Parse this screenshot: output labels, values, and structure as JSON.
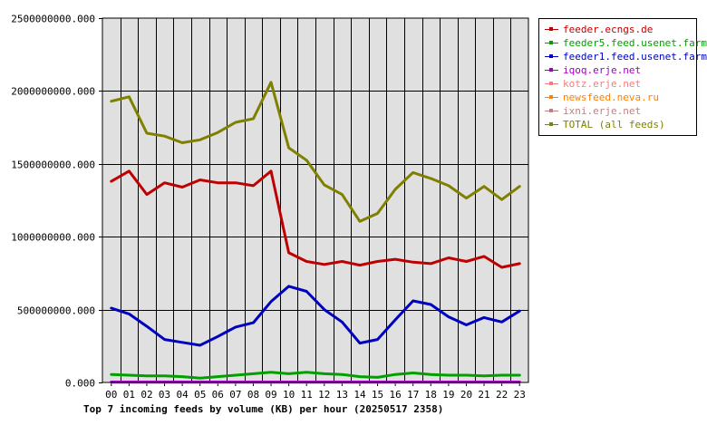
{
  "chart_data": {
    "type": "line",
    "title": "Top 7 incoming feeds by volume (KB) per hour (20250517 2358)",
    "x": [
      "00",
      "01",
      "02",
      "03",
      "04",
      "05",
      "06",
      "07",
      "08",
      "09",
      "10",
      "11",
      "12",
      "13",
      "14",
      "15",
      "16",
      "17",
      "18",
      "19",
      "20",
      "21",
      "22",
      "23"
    ],
    "yticks": [
      "0.000",
      "500000000.000",
      "1000000000.000",
      "1500000000.000",
      "2000000000.000",
      "2500000000.000"
    ],
    "ylim": [
      0,
      2500000000
    ],
    "grid": true,
    "legend_position": "right",
    "series": [
      {
        "name": "feeder.ecngs.de",
        "color": "#c00000",
        "values": [
          1380000000,
          1450000000,
          1290000000,
          1370000000,
          1340000000,
          1390000000,
          1370000000,
          1370000000,
          1350000000,
          1450000000,
          890000000,
          830000000,
          810000000,
          830000000,
          805000000,
          830000000,
          845000000,
          825000000,
          815000000,
          855000000,
          830000000,
          865000000,
          790000000,
          815000000
        ]
      },
      {
        "name": "feeder5.feed.usenet.farm",
        "color": "#00a000",
        "values": [
          55000000,
          50000000,
          45000000,
          45000000,
          40000000,
          30000000,
          40000000,
          50000000,
          60000000,
          70000000,
          60000000,
          70000000,
          60000000,
          55000000,
          40000000,
          35000000,
          55000000,
          65000000,
          55000000,
          50000000,
          50000000,
          45000000,
          50000000,
          50000000
        ]
      },
      {
        "name": "feeder1.feed.usenet.farm",
        "color": "#0000c0",
        "values": [
          510000000,
          470000000,
          385000000,
          295000000,
          275000000,
          255000000,
          315000000,
          380000000,
          410000000,
          555000000,
          660000000,
          625000000,
          500000000,
          415000000,
          270000000,
          295000000,
          430000000,
          560000000,
          535000000,
          450000000,
          395000000,
          445000000,
          415000000,
          490000000
        ]
      },
      {
        "name": "iqoq.erje.net",
        "color": "#a000c0",
        "values": [
          3000000,
          3000000,
          3000000,
          3000000,
          3000000,
          3000000,
          3000000,
          3000000,
          3000000,
          3000000,
          3000000,
          3000000,
          3000000,
          3000000,
          3000000,
          3000000,
          3000000,
          3000000,
          3000000,
          3000000,
          3000000,
          3000000,
          3000000,
          3000000
        ]
      },
      {
        "name": "kotz.erje.net",
        "color": "#f08080",
        "values": [
          2000000,
          2000000,
          2000000,
          2000000,
          2000000,
          2000000,
          2000000,
          2000000,
          2000000,
          2000000,
          2000000,
          2000000,
          2000000,
          2000000,
          2000000,
          2000000,
          2000000,
          2000000,
          2000000,
          2000000,
          2000000,
          2000000,
          2000000,
          2000000
        ]
      },
      {
        "name": "newsfeed.neva.ru",
        "color": "#ff8000",
        "values": [
          2000000,
          2000000,
          2000000,
          2000000,
          2000000,
          2000000,
          2000000,
          2000000,
          2000000,
          2000000,
          2000000,
          2000000,
          2000000,
          2000000,
          2000000,
          2000000,
          2000000,
          2000000,
          2000000,
          2000000,
          2000000,
          2000000,
          2000000,
          2000000
        ]
      },
      {
        "name": "ixni.erje.net",
        "color": "#c08080",
        "values": [
          1000000,
          1000000,
          1000000,
          1000000,
          1000000,
          1000000,
          1000000,
          1000000,
          1000000,
          1000000,
          1000000,
          1000000,
          1000000,
          1000000,
          1000000,
          1000000,
          1000000,
          1000000,
          1000000,
          1000000,
          1000000,
          1000000,
          1000000,
          1000000
        ]
      },
      {
        "name": "TOTAL (all feeds)",
        "color": "#808000",
        "values": [
          1930000000,
          1960000000,
          1710000000,
          1690000000,
          1645000000,
          1665000000,
          1715000000,
          1785000000,
          1810000000,
          2060000000,
          1610000000,
          1525000000,
          1355000000,
          1290000000,
          1105000000,
          1160000000,
          1325000000,
          1440000000,
          1400000000,
          1350000000,
          1265000000,
          1345000000,
          1255000000,
          1345000000
        ]
      }
    ]
  }
}
